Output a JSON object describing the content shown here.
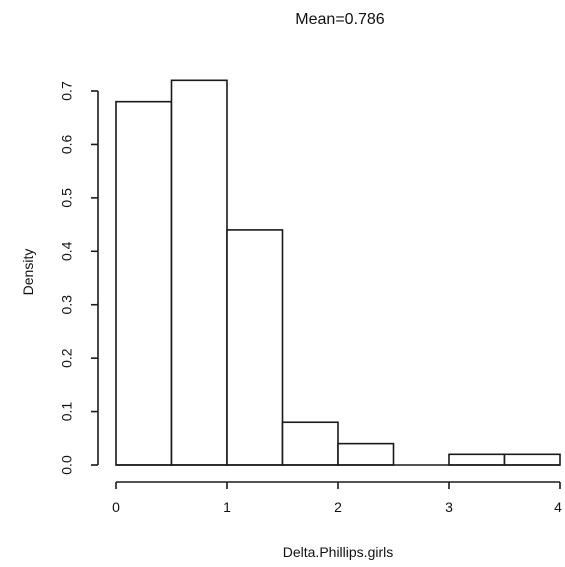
{
  "chart_data": {
    "type": "bar",
    "title": "Mean=0.786",
    "xlabel": "Delta.Phillips.girls",
    "ylabel": "Density",
    "xlim": [
      0,
      4
    ],
    "ylim": [
      0,
      0.7
    ],
    "xticks": [
      0,
      1,
      2,
      3,
      4
    ],
    "yticks": [
      "0.0",
      "0.1",
      "0.2",
      "0.3",
      "0.4",
      "0.5",
      "0.6",
      "0.7"
    ],
    "bins": [
      {
        "start": 0.0,
        "end": 0.5,
        "density": 0.68
      },
      {
        "start": 0.5,
        "end": 1.0,
        "density": 0.72
      },
      {
        "start": 1.0,
        "end": 1.5,
        "density": 0.44
      },
      {
        "start": 1.5,
        "end": 2.0,
        "density": 0.08
      },
      {
        "start": 2.0,
        "end": 2.5,
        "density": 0.04
      },
      {
        "start": 2.5,
        "end": 3.0,
        "density": 0.0
      },
      {
        "start": 3.0,
        "end": 3.5,
        "density": 0.02
      },
      {
        "start": 3.5,
        "end": 4.0,
        "density": 0.02
      }
    ],
    "grid": false
  }
}
